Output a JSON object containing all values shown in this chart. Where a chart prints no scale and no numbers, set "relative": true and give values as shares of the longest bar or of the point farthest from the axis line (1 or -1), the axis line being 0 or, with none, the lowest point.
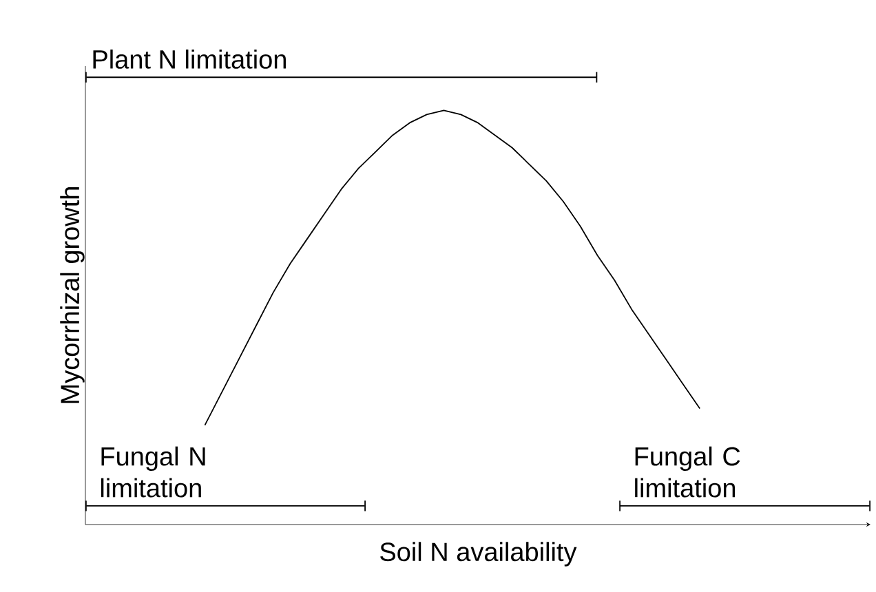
{
  "chart_data": {
    "type": "line",
    "relative": true,
    "xlabel": "Soil N availability",
    "ylabel": "Mycorrhizal growth",
    "categories": [
      null,
      null,
      null,
      null,
      null,
      null,
      null,
      null,
      null,
      null,
      null,
      null,
      null,
      null,
      null,
      null,
      null,
      null,
      null,
      null,
      null,
      null,
      null,
      null,
      null,
      null,
      null,
      null,
      null,
      null,
      null,
      null,
      null,
      null,
      null,
      null,
      null,
      null,
      null,
      null,
      null,
      null,
      null,
      null,
      null,
      null,
      null
    ],
    "series": [
      {
        "color": "#000000",
        "values": [
          null,
          null,
          null,
          null,
          null,
          null,
          null,
          0.24,
          0.32,
          0.4,
          0.48,
          0.56,
          0.63,
          0.69,
          0.75,
          0.81,
          0.86,
          0.9,
          0.94,
          0.97,
          0.99,
          1.0,
          0.99,
          0.97,
          0.94,
          0.91,
          0.87,
          0.83,
          0.78,
          0.72,
          0.65,
          0.59,
          0.52,
          0.46,
          0.4,
          0.34,
          0.28,
          null,
          null,
          null,
          null,
          null,
          null,
          null,
          null,
          null,
          null
        ]
      }
    ],
    "annotations": [
      "Plant N limitation",
      "Fungal N limitation",
      "Fungal C limitation"
    ],
    "marker": "none",
    "line_style": "solid"
  }
}
